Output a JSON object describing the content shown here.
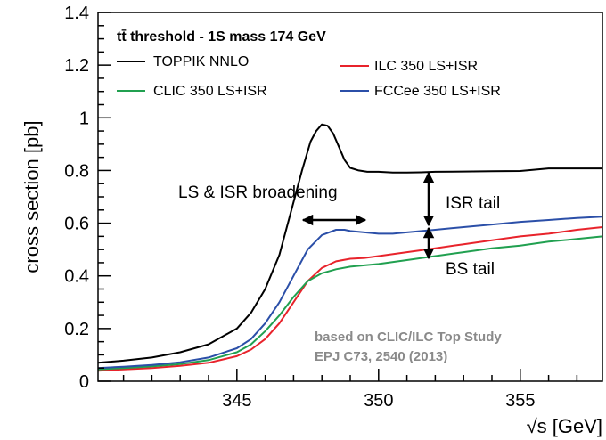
{
  "chart_data": {
    "type": "line",
    "xlabel": "√s [GeV]",
    "ylabel": "cross section [pb]",
    "xlim": [
      340.1,
      357.9
    ],
    "ylim": [
      0,
      1.4
    ],
    "xticks": [
      345,
      350,
      355
    ],
    "xtick_labels": [
      "345",
      "350",
      "355"
    ],
    "yticks": [
      0,
      0.2,
      0.4,
      0.6,
      0.8,
      1,
      1.2,
      1.4
    ],
    "ytick_labels": [
      "0",
      "0.2",
      "0.4",
      "0.6",
      "0.8",
      "1",
      "1.2",
      "1.4"
    ],
    "grid": false,
    "legend": {
      "title": "tt̄ threshold - 1S mass 174 GeV",
      "placement": "top"
    },
    "series": [
      {
        "name": "TOPPIK NNLO",
        "color": "#000000",
        "x": [
          340.1,
          341.0,
          342.0,
          343.0,
          344.0,
          345.0,
          345.5,
          346.0,
          346.5,
          347.0,
          347.3,
          347.6,
          347.8,
          348.0,
          348.2,
          348.4,
          348.6,
          348.8,
          349.0,
          349.3,
          349.6,
          350.0,
          350.5,
          351.0,
          351.5,
          352.0,
          353.0,
          354.0,
          355.0,
          356.0,
          357.0,
          357.9
        ],
        "values": [
          0.07,
          0.078,
          0.09,
          0.11,
          0.14,
          0.2,
          0.26,
          0.35,
          0.48,
          0.68,
          0.8,
          0.91,
          0.95,
          0.975,
          0.97,
          0.94,
          0.89,
          0.84,
          0.81,
          0.8,
          0.795,
          0.795,
          0.792,
          0.792,
          0.793,
          0.795,
          0.796,
          0.797,
          0.798,
          0.808,
          0.808,
          0.808
        ]
      },
      {
        "name": "ILC 350 LS+ISR",
        "color": "#e8232b",
        "x": [
          340.1,
          341.0,
          342.0,
          343.0,
          344.0,
          345.0,
          345.5,
          346.0,
          346.5,
          347.0,
          347.5,
          348.0,
          348.5,
          349.0,
          349.5,
          350.0,
          351.0,
          352.0,
          353.0,
          354.0,
          355.0,
          356.0,
          357.0,
          357.9
        ],
        "values": [
          0.04,
          0.045,
          0.05,
          0.058,
          0.07,
          0.095,
          0.12,
          0.16,
          0.22,
          0.3,
          0.38,
          0.43,
          0.455,
          0.465,
          0.468,
          0.475,
          0.49,
          0.505,
          0.52,
          0.535,
          0.55,
          0.56,
          0.575,
          0.585
        ]
      },
      {
        "name": "CLIC 350 LS+ISR",
        "color": "#21a050",
        "x": [
          340.1,
          341.0,
          342.0,
          343.0,
          344.0,
          345.0,
          345.5,
          346.0,
          346.5,
          347.0,
          347.5,
          348.0,
          348.5,
          349.0,
          349.5,
          350.0,
          351.0,
          352.0,
          353.0,
          354.0,
          355.0,
          356.0,
          357.0,
          357.9
        ],
        "values": [
          0.045,
          0.05,
          0.056,
          0.065,
          0.08,
          0.11,
          0.14,
          0.19,
          0.25,
          0.32,
          0.38,
          0.41,
          0.425,
          0.435,
          0.44,
          0.445,
          0.46,
          0.475,
          0.49,
          0.505,
          0.515,
          0.53,
          0.54,
          0.55
        ]
      },
      {
        "name": "FCCee 350 LS+ISR",
        "color": "#2b4fa8",
        "x": [
          340.1,
          341.0,
          342.0,
          343.0,
          344.0,
          345.0,
          345.5,
          346.0,
          346.5,
          347.0,
          347.5,
          348.0,
          348.5,
          348.8,
          349.0,
          349.5,
          350.0,
          350.5,
          351.0,
          352.0,
          353.0,
          354.0,
          355.0,
          356.0,
          357.0,
          357.9
        ],
        "values": [
          0.05,
          0.055,
          0.062,
          0.072,
          0.09,
          0.125,
          0.16,
          0.22,
          0.3,
          0.4,
          0.5,
          0.555,
          0.575,
          0.575,
          0.57,
          0.565,
          0.56,
          0.56,
          0.565,
          0.575,
          0.585,
          0.595,
          0.605,
          0.612,
          0.62,
          0.625
        ]
      }
    ],
    "annotations": {
      "broadening_label": "LS & ISR broadening",
      "isr_tail_label": "ISR tail",
      "bs_tail_label": "BS tail",
      "reference_line1": "based on CLIC/ILC Top Study",
      "reference_line2": "EPJ C73, 2540 (2013)"
    }
  }
}
